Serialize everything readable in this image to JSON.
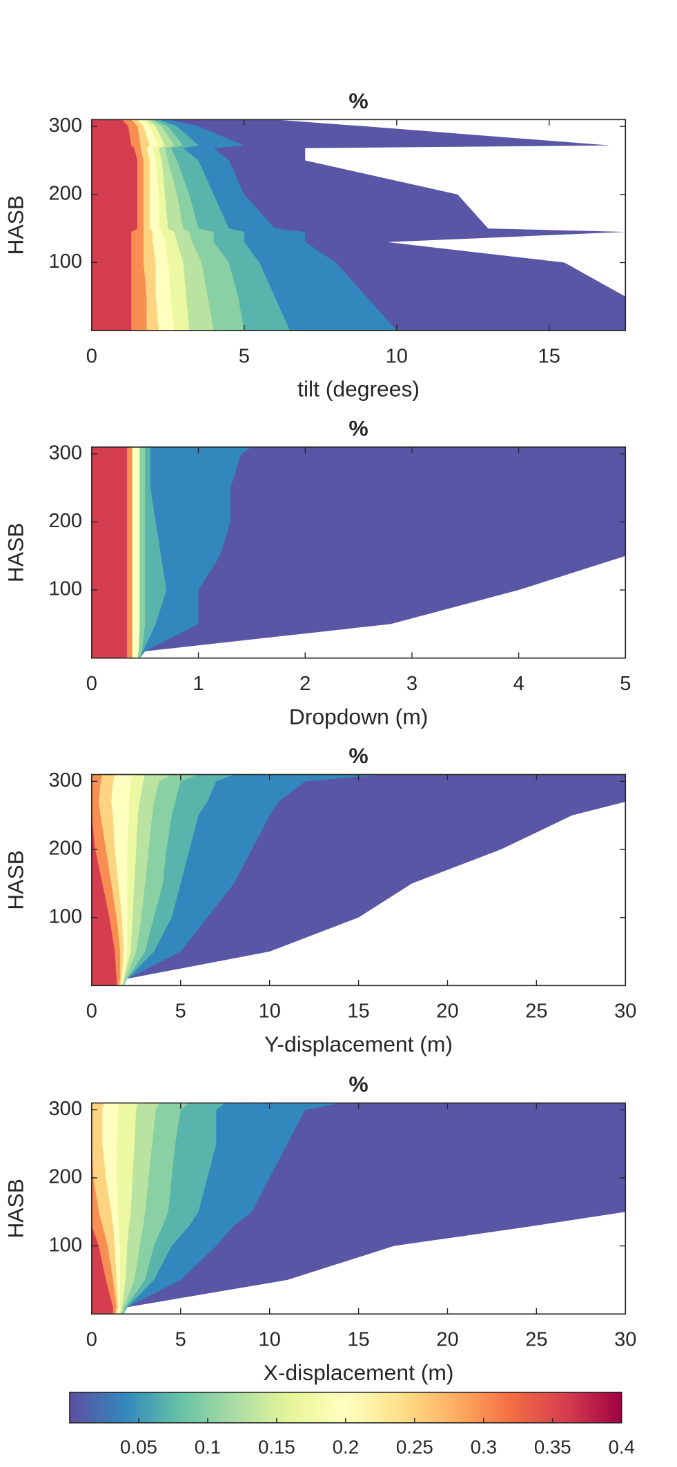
{
  "chart_data": [
    {
      "type": "contour",
      "title": "%",
      "xlabel": "tilt (degrees)",
      "ylabel": "HASB",
      "xlim": [
        0,
        17.5
      ],
      "ylim": [
        0,
        310
      ],
      "xticks": [
        0,
        5,
        10,
        15
      ],
      "yticks": [
        100,
        200,
        300
      ],
      "heights": [
        0,
        50,
        100,
        130,
        145,
        150,
        200,
        250,
        268,
        272,
        300,
        310
      ],
      "levels": [
        {
          "value": 0.005,
          "x": [
            17.5,
            17.5,
            15.5,
            9.7,
            17.5,
            13,
            12,
            7,
            7,
            17,
            9,
            6
          ]
        },
        {
          "value": 0.04,
          "x": [
            10,
            9,
            8,
            7,
            7,
            6,
            5,
            4.5,
            4,
            5,
            3.5,
            2.5
          ]
        },
        {
          "value": 0.07,
          "x": [
            6.5,
            6,
            5.5,
            5,
            5,
            4.5,
            4,
            3.5,
            3,
            3.5,
            2.8,
            2.2
          ]
        },
        {
          "value": 0.1,
          "x": [
            5,
            4.8,
            4.5,
            4,
            4,
            3.5,
            3.2,
            2.8,
            2.6,
            3,
            2.5,
            2
          ]
        },
        {
          "value": 0.13,
          "x": [
            4,
            3.8,
            3.6,
            3.3,
            3.2,
            3,
            2.8,
            2.5,
            2.4,
            2.7,
            2.3,
            1.9
          ]
        },
        {
          "value": 0.17,
          "x": [
            3.2,
            3.1,
            3,
            2.8,
            2.7,
            2.5,
            2.4,
            2.3,
            2.2,
            2.4,
            2.1,
            1.8
          ]
        },
        {
          "value": 0.2,
          "x": [
            2.7,
            2.6,
            2.5,
            2.4,
            2.3,
            2.2,
            2.2,
            2.1,
            2,
            2.2,
            1.9,
            1.7
          ]
        },
        {
          "value": 0.25,
          "x": [
            2.2,
            2.1,
            2.1,
            2,
            2,
            1.9,
            1.9,
            1.9,
            1.8,
            1.9,
            1.7,
            1.5
          ]
        },
        {
          "value": 0.3,
          "x": [
            1.8,
            1.8,
            1.7,
            1.7,
            1.7,
            1.7,
            1.7,
            1.7,
            1.6,
            1.6,
            1.5,
            1.3
          ]
        },
        {
          "value": 0.36,
          "x": [
            1.3,
            1.3,
            1.3,
            1.3,
            1.3,
            1.5,
            1.5,
            1.5,
            1.4,
            1.3,
            1.2,
            1
          ]
        }
      ]
    },
    {
      "type": "contour",
      "title": "%",
      "xlabel": "Dropdown (m)",
      "ylabel": "HASB",
      "xlim": [
        0,
        5
      ],
      "ylim": [
        0,
        310
      ],
      "xticks": [
        0,
        1,
        2,
        3,
        4,
        5
      ],
      "yticks": [
        100,
        200,
        300
      ],
      "heights": [
        0,
        10,
        50,
        100,
        150,
        200,
        250,
        300,
        310
      ],
      "levels": [
        {
          "value": 0.005,
          "x": [
            0.45,
            0.5,
            2.8,
            4,
            5,
            5,
            5,
            5,
            5
          ]
        },
        {
          "value": 0.04,
          "x": [
            0.45,
            0.5,
            1,
            1,
            1.2,
            1.3,
            1.3,
            1.4,
            1.5
          ]
        },
        {
          "value": 0.07,
          "x": [
            0.45,
            0.48,
            0.6,
            0.7,
            0.65,
            0.6,
            0.55,
            0.55,
            0.55
          ]
        },
        {
          "value": 0.1,
          "x": [
            0.45,
            0.47,
            0.5,
            0.5,
            0.5,
            0.5,
            0.5,
            0.5,
            0.5
          ]
        },
        {
          "value": 0.2,
          "x": [
            0.43,
            0.44,
            0.45,
            0.45,
            0.45,
            0.45,
            0.45,
            0.45,
            0.45
          ]
        },
        {
          "value": 0.3,
          "x": [
            0.38,
            0.38,
            0.38,
            0.38,
            0.38,
            0.38,
            0.38,
            0.38,
            0.38
          ]
        },
        {
          "value": 0.36,
          "x": [
            0.33,
            0.33,
            0.33,
            0.33,
            0.33,
            0.33,
            0.33,
            0.33,
            0.33
          ]
        }
      ]
    },
    {
      "type": "contour",
      "title": "%",
      "xlabel": "Y-displacement (m)",
      "ylabel": "HASB",
      "xlim": [
        0,
        30
      ],
      "ylim": [
        0,
        310
      ],
      "xticks": [
        0,
        5,
        10,
        15,
        20,
        25,
        30
      ],
      "yticks": [
        100,
        200,
        300
      ],
      "heights": [
        0,
        10,
        50,
        100,
        150,
        200,
        250,
        270,
        300,
        310
      ],
      "levels": [
        {
          "value": 0.005,
          "x": [
            1.8,
            2,
            10,
            15,
            18,
            23,
            27,
            30,
            30,
            30
          ]
        },
        {
          "value": 0.04,
          "x": [
            1.8,
            2,
            5,
            6.5,
            8,
            9,
            10,
            10.5,
            12,
            16.5
          ]
        },
        {
          "value": 0.07,
          "x": [
            1.8,
            2,
            3.5,
            4.5,
            5,
            5.5,
            6,
            6.5,
            7,
            8
          ]
        },
        {
          "value": 0.1,
          "x": [
            1.8,
            2,
            3,
            3.5,
            4,
            4.2,
            4.5,
            4.7,
            5,
            6
          ]
        },
        {
          "value": 0.13,
          "x": [
            1.8,
            1.9,
            2.5,
            2.8,
            3,
            3.2,
            3.4,
            3.5,
            3.8,
            4.5
          ]
        },
        {
          "value": 0.17,
          "x": [
            1.7,
            1.8,
            2.2,
            2.3,
            2.4,
            2.5,
            2.6,
            2.7,
            2.9,
            3
          ]
        },
        {
          "value": 0.2,
          "x": [
            1.7,
            1.8,
            2,
            2,
            2,
            2,
            2.1,
            2.1,
            2.2,
            2.3
          ]
        },
        {
          "value": 0.25,
          "x": [
            1.6,
            1.7,
            1.8,
            1.7,
            1.5,
            1.3,
            1.2,
            1.1,
            1.2,
            1.3
          ]
        },
        {
          "value": 0.3,
          "x": [
            1.5,
            1.6,
            1.6,
            1.4,
            1.1,
            0.8,
            0.5,
            0.4,
            0.5,
            0.6
          ]
        },
        {
          "value": 0.36,
          "x": [
            1.4,
            1.4,
            1.3,
            1,
            0.6,
            0.2,
            0,
            0,
            0,
            0
          ]
        }
      ]
    },
    {
      "type": "contour",
      "title": "%",
      "xlabel": "X-displacement (m)",
      "ylabel": "HASB",
      "xlim": [
        0,
        30
      ],
      "ylim": [
        0,
        310
      ],
      "xticks": [
        0,
        5,
        10,
        15,
        20,
        25,
        30
      ],
      "yticks": [
        100,
        200,
        300
      ],
      "heights": [
        0,
        10,
        50,
        100,
        130,
        150,
        200,
        250,
        300,
        310
      ],
      "levels": [
        {
          "value": 0.005,
          "x": [
            1.8,
            2,
            11,
            17,
            25,
            30,
            30,
            30,
            30,
            30
          ]
        },
        {
          "value": 0.04,
          "x": [
            1.8,
            2,
            5,
            7,
            8,
            9,
            10,
            11,
            12,
            14
          ]
        },
        {
          "value": 0.07,
          "x": [
            1.8,
            2,
            3.5,
            4.5,
            5.5,
            6,
            6.5,
            7,
            7,
            7.5
          ]
        },
        {
          "value": 0.1,
          "x": [
            1.8,
            1.9,
            3,
            3.5,
            4,
            4.3,
            4.5,
            4.7,
            5,
            5.5
          ]
        },
        {
          "value": 0.13,
          "x": [
            1.7,
            1.8,
            2.4,
            2.7,
            2.9,
            3,
            3.2,
            3.4,
            3.6,
            3.8
          ]
        },
        {
          "value": 0.17,
          "x": [
            1.6,
            1.7,
            1.9,
            2,
            2.1,
            2.2,
            2.3,
            2.4,
            2.5,
            2.6
          ]
        },
        {
          "value": 0.2,
          "x": [
            1.5,
            1.6,
            1.6,
            1.6,
            1.5,
            1.5,
            1.4,
            1.4,
            1.5,
            1.5
          ]
        },
        {
          "value": 0.25,
          "x": [
            1.4,
            1.5,
            1.4,
            1.3,
            1.2,
            1.1,
            0.8,
            0.6,
            0.6,
            0.7
          ]
        },
        {
          "value": 0.3,
          "x": [
            1.3,
            1.4,
            1.2,
            0.9,
            0.6,
            0.4,
            0.1,
            0,
            0,
            0
          ]
        },
        {
          "value": 0.36,
          "x": [
            1.2,
            1.2,
            0.8,
            0.4,
            0,
            0,
            0,
            0,
            0,
            0
          ]
        }
      ]
    },
    {
      "type": "colorbar",
      "clim": [
        0,
        0.4
      ],
      "ticks": [
        0.05,
        0.1,
        0.15,
        0.2,
        0.25,
        0.3,
        0.35,
        0.4
      ],
      "colormap": [
        "#5e4fa2",
        "#3288bd",
        "#66c2a5",
        "#abdda4",
        "#e6f598",
        "#ffffbf",
        "#fee08b",
        "#fdae61",
        "#f46d43",
        "#d53e4f",
        "#9e0142"
      ]
    }
  ]
}
